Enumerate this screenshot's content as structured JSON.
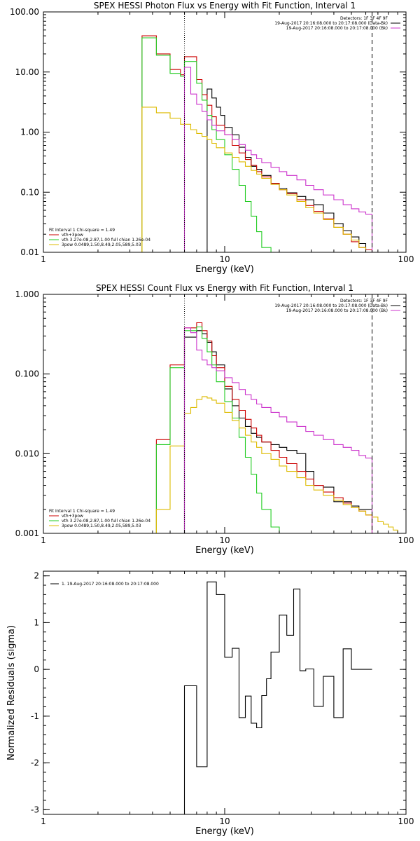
{
  "chart_data": [
    {
      "type": "line",
      "id": "photon",
      "title": "SPEX HESSI Photon Flux vs Energy with Fit Function, Interval 1",
      "xlabel": "Energy (keV)",
      "ylabel": "",
      "xscale": "log",
      "yscale": "log",
      "xlim": [
        1,
        100
      ],
      "ylim": [
        0.01,
        100
      ],
      "xticks": [
        {
          "v": 1,
          "label": "1"
        },
        {
          "v": 10,
          "label": "10"
        },
        {
          "v": 100,
          "label": "100"
        }
      ],
      "yticks": [
        {
          "v": 0.01,
          "label": "0.01"
        },
        {
          "v": 0.1,
          "label": "0.10"
        },
        {
          "v": 1,
          "label": "1.00"
        },
        {
          "v": 10,
          "label": "10.00"
        },
        {
          "v": 100,
          "label": "100.00"
        }
      ],
      "vlines": [
        {
          "x": 6.0,
          "style": "dotted"
        },
        {
          "x": 65,
          "style": "dashed"
        }
      ],
      "top_legend": [
        {
          "text": "Detectors: 1F 3F 4F 9F",
          "color": "#000000",
          "line": false
        },
        {
          "text": "19-Aug-2017 20:16:08.000 to 20:17:08.000 (Data-Bk)",
          "color": "#000000",
          "line": true
        },
        {
          "text": "19-Aug-2017 20:16:08.000 to 20:17:08.000 (Bk)",
          "color": "#cc33cc",
          "line": true
        }
      ],
      "bottom_legend": [
        {
          "text": "Fit Interval 1   Chi-square = 1.49",
          "color": "#000000",
          "line": false
        },
        {
          "text": "vth+3pow",
          "color": "#cc0000",
          "line": true
        },
        {
          "text": "vth 3.27e-08,2.87,1.00  full chian 1.26e-04",
          "color": "#22cc22",
          "line": true
        },
        {
          "text": "3pow 0.0489,1.50,8.49,2.05,589,5.03",
          "color": "#ddbb00",
          "line": true
        }
      ],
      "series": [
        {
          "name": "Data-Bk",
          "color": "#000000",
          "step": true,
          "x": [
            8.0,
            8.5,
            9.0,
            9.5,
            10.0,
            11.0,
            12.0,
            13.0,
            14.0,
            15.0,
            16.0,
            18.0,
            20.0,
            22.0,
            25.0,
            28.0,
            31.0,
            35.0,
            40.0,
            45.0,
            50.0,
            55.0,
            60.0,
            65.0
          ],
          "y": [
            5.2,
            3.7,
            2.6,
            1.9,
            1.2,
            0.9,
            0.56,
            0.38,
            0.27,
            0.24,
            0.19,
            0.14,
            0.115,
            0.098,
            0.085,
            0.075,
            0.062,
            0.045,
            0.03,
            0.023,
            0.018,
            0.014,
            0.011,
            0.0
          ]
        },
        {
          "name": "vth+3pow",
          "color": "#cc0000",
          "step": true,
          "x": [
            3.5,
            4.2,
            5.0,
            5.7,
            6.0,
            6.5,
            7.0,
            7.5,
            8.0,
            8.5,
            9.0,
            10.0,
            11.0,
            12.0,
            13.0,
            14.0,
            15.0,
            16.0,
            18.0,
            20.0,
            22.0,
            25.0,
            28.0,
            31.0,
            35.0,
            40.0,
            45.0,
            50.0,
            55.0,
            60.0,
            65.0
          ],
          "y": [
            40,
            20,
            11,
            9,
            18,
            18,
            7.5,
            4.2,
            2.8,
            1.8,
            1.3,
            0.9,
            0.6,
            0.45,
            0.35,
            0.28,
            0.22,
            0.18,
            0.14,
            0.11,
            0.095,
            0.075,
            0.06,
            0.048,
            0.036,
            0.026,
            0.02,
            0.015,
            0.012,
            0.011,
            0.0
          ]
        },
        {
          "name": "vth",
          "color": "#22cc22",
          "step": true,
          "x": [
            3.5,
            4.2,
            5.0,
            5.7,
            6.0,
            6.5,
            7.0,
            7.5,
            8.0,
            8.5,
            9.0,
            10.0,
            11.0,
            12.0,
            13.0,
            14.0,
            15.0,
            16.0,
            18.0
          ],
          "y": [
            37,
            19,
            9.5,
            8.5,
            15,
            15,
            6.5,
            3.4,
            1.9,
            1.1,
            0.75,
            0.42,
            0.24,
            0.13,
            0.07,
            0.04,
            0.022,
            0.012,
            0.0
          ]
        },
        {
          "name": "3pow",
          "color": "#ddbb00",
          "step": true,
          "x": [
            3.5,
            4.2,
            5.0,
            5.7,
            6.5,
            7.0,
            7.5,
            8.0,
            8.5,
            9.0,
            10.0,
            11.0,
            12.0,
            13.0,
            14.0,
            15.0,
            16.0,
            18.0,
            20.0,
            22.0,
            25.0,
            28.0,
            31.0,
            35.0,
            40.0,
            45.0,
            50.0,
            55.0,
            60.0,
            65.0
          ],
          "y": [
            2.6,
            2.1,
            1.7,
            1.35,
            1.1,
            0.95,
            0.85,
            0.75,
            0.65,
            0.55,
            0.45,
            0.38,
            0.32,
            0.27,
            0.23,
            0.2,
            0.17,
            0.135,
            0.11,
            0.09,
            0.07,
            0.055,
            0.045,
            0.035,
            0.026,
            0.02,
            0.016,
            0.012,
            0.01,
            0.0
          ]
        },
        {
          "name": "Bk",
          "color": "#cc33cc",
          "step": true,
          "x": [
            6.0,
            6.5,
            7.0,
            7.5,
            8.0,
            8.5,
            9.0,
            10.0,
            11.0,
            12.0,
            13.0,
            14.0,
            15.0,
            16.0,
            18.0,
            20.0,
            22.0,
            25.0,
            28.0,
            31.0,
            35.0,
            40.0,
            45.0,
            50.0,
            55.0,
            60.0,
            65.0
          ],
          "y": [
            12,
            4.3,
            2.9,
            2.2,
            1.6,
            1.3,
            1.05,
            0.9,
            0.75,
            0.62,
            0.5,
            0.42,
            0.36,
            0.31,
            0.26,
            0.22,
            0.19,
            0.16,
            0.13,
            0.11,
            0.09,
            0.075,
            0.062,
            0.053,
            0.047,
            0.043,
            0.0
          ]
        }
      ]
    },
    {
      "type": "line",
      "id": "count",
      "title": "SPEX HESSI Count Flux vs Energy with Fit Function, Interval 1",
      "xlabel": "Energy (keV)",
      "ylabel": "",
      "xscale": "log",
      "yscale": "log",
      "xlim": [
        1,
        100
      ],
      "ylim": [
        0.001,
        1
      ],
      "xticks": [
        {
          "v": 1,
          "label": "1"
        },
        {
          "v": 10,
          "label": "10"
        },
        {
          "v": 100,
          "label": "100"
        }
      ],
      "yticks": [
        {
          "v": 0.001,
          "label": "0.001"
        },
        {
          "v": 0.01,
          "label": "0.010"
        },
        {
          "v": 0.1,
          "label": "0.100"
        },
        {
          "v": 1,
          "label": "1.000"
        }
      ],
      "vlines": [
        {
          "x": 6.0,
          "style": "dotted"
        },
        {
          "x": 65,
          "style": "dashed"
        }
      ],
      "top_legend": [
        {
          "text": "Detectors: 1F 3F 4F 9F",
          "color": "#000000",
          "line": false
        },
        {
          "text": "19-Aug-2017 20:16:08.000 to 20:17:08.000 (Data-Bk)",
          "color": "#000000",
          "line": true
        },
        {
          "text": "19-Aug-2017 20:16:08.000 to 20:17:08.000 (Bk)",
          "color": "#cc33cc",
          "line": true
        }
      ],
      "bottom_legend": [
        {
          "text": "Fit Interval 1   Chi-square = 1.49",
          "color": "#000000",
          "line": false
        },
        {
          "text": "vth+3pow",
          "color": "#cc0000",
          "line": true
        },
        {
          "text": "vth 3.27e-08,2.87,1.00  full chian 1.26e-04",
          "color": "#22cc22",
          "line": true
        },
        {
          "text": "3pow 0.0489,1.50,8.49,2.05,589,5.03",
          "color": "#ddbb00",
          "line": true
        }
      ],
      "series": [
        {
          "name": "Data-Bk",
          "color": "#000000",
          "step": true,
          "x": [
            6.0,
            6.5,
            7.0,
            7.5,
            8.0,
            8.5,
            9.0,
            10.0,
            11.0,
            12.0,
            13.0,
            14.0,
            15.0,
            16.0,
            18.0,
            20.0,
            22.0,
            25.0,
            28.0,
            31.0,
            35.0,
            40.0,
            45.0,
            50.0,
            55.0,
            60.0,
            65.0
          ],
          "y": [
            0.29,
            0.29,
            0.35,
            0.32,
            0.25,
            0.19,
            0.13,
            0.065,
            0.04,
            0.028,
            0.022,
            0.018,
            0.016,
            0.014,
            0.013,
            0.012,
            0.011,
            0.01,
            0.006,
            0.004,
            0.0038,
            0.0025,
            0.0025,
            0.0022,
            0.002,
            0.002,
            0.0
          ]
        },
        {
          "name": "vth+3pow",
          "color": "#cc0000",
          "step": true,
          "x": [
            4.2,
            5.0,
            5.7,
            6.0,
            6.5,
            7.0,
            7.5,
            8.0,
            8.5,
            9.0,
            10.0,
            11.0,
            12.0,
            13.0,
            14.0,
            15.0,
            16.0,
            18.0,
            20.0,
            22.0,
            25.0,
            28.0,
            31.0,
            35.0,
            40.0,
            45.0,
            50.0,
            55.0,
            60.0,
            65.0
          ],
          "y": [
            0.015,
            0.13,
            0.13,
            0.38,
            0.38,
            0.44,
            0.35,
            0.26,
            0.17,
            0.12,
            0.07,
            0.048,
            0.035,
            0.027,
            0.021,
            0.017,
            0.014,
            0.011,
            0.009,
            0.0075,
            0.006,
            0.0048,
            0.004,
            0.0033,
            0.0028,
            0.0024,
            0.0021,
            0.0019,
            0.0017,
            0.0
          ]
        },
        {
          "name": "vth",
          "color": "#22cc22",
          "step": true,
          "x": [
            4.2,
            5.0,
            5.7,
            6.0,
            6.5,
            7.0,
            7.5,
            8.0,
            8.5,
            9.0,
            10.0,
            11.0,
            12.0,
            13.0,
            14.0,
            15.0,
            16.0,
            18.0,
            20.0
          ],
          "y": [
            0.013,
            0.12,
            0.12,
            0.35,
            0.35,
            0.39,
            0.28,
            0.19,
            0.13,
            0.08,
            0.045,
            0.028,
            0.016,
            0.009,
            0.0055,
            0.0032,
            0.002,
            0.0012,
            0.0
          ]
        },
        {
          "name": "3pow",
          "color": "#ddbb00",
          "step": true,
          "x": [
            4.2,
            5.0,
            5.7,
            6.0,
            6.5,
            7.0,
            7.5,
            8.0,
            8.5,
            9.0,
            10.0,
            11.0,
            12.0,
            13.0,
            14.0,
            15.0,
            16.0,
            18.0,
            20.0,
            22.0,
            25.0,
            28.0,
            31.0,
            35.0,
            40.0,
            45.0,
            50.0,
            55.0,
            60.0,
            65.0,
            70.0,
            75.0,
            80.0,
            85.0,
            90.0,
            100.0
          ],
          "y": [
            0.002,
            0.0125,
            0.0125,
            0.032,
            0.038,
            0.048,
            0.052,
            0.05,
            0.047,
            0.043,
            0.033,
            0.026,
            0.021,
            0.017,
            0.014,
            0.012,
            0.01,
            0.0085,
            0.007,
            0.006,
            0.005,
            0.004,
            0.0035,
            0.003,
            0.0026,
            0.0023,
            0.0021,
            0.0019,
            0.0017,
            0.0016,
            0.0014,
            0.0013,
            0.0012,
            0.0011,
            0.001,
            0.0
          ]
        },
        {
          "name": "Bk",
          "color": "#cc33cc",
          "step": true,
          "x": [
            6.0,
            6.5,
            7.0,
            7.5,
            8.0,
            8.5,
            9.0,
            10.0,
            11.0,
            12.0,
            13.0,
            14.0,
            15.0,
            16.0,
            18.0,
            20.0,
            22.0,
            25.0,
            28.0,
            31.0,
            35.0,
            40.0,
            45.0,
            50.0,
            55.0,
            60.0,
            65.0
          ],
          "y": [
            0.38,
            0.33,
            0.2,
            0.15,
            0.13,
            0.12,
            0.11,
            0.09,
            0.078,
            0.064,
            0.055,
            0.048,
            0.042,
            0.038,
            0.033,
            0.029,
            0.025,
            0.022,
            0.019,
            0.017,
            0.015,
            0.013,
            0.012,
            0.011,
            0.0095,
            0.0088,
            0.0
          ]
        }
      ]
    },
    {
      "type": "line",
      "id": "resid",
      "title": "",
      "xlabel": "Energy (keV)",
      "ylabel": "Normalized Residuals (sigma)",
      "xscale": "log",
      "yscale": "linear",
      "xlim": [
        1,
        100
      ],
      "ylim": [
        -3.1,
        2.1
      ],
      "xticks": [
        {
          "v": 1,
          "label": "1"
        },
        {
          "v": 10,
          "label": "10"
        },
        {
          "v": 100,
          "label": "100"
        }
      ],
      "yticks": [
        {
          "v": -3,
          "label": "-3"
        },
        {
          "v": -2,
          "label": "-2"
        },
        {
          "v": -1,
          "label": "-1"
        },
        {
          "v": 0,
          "label": "0"
        },
        {
          "v": 1,
          "label": "1"
        },
        {
          "v": 2,
          "label": "2"
        }
      ],
      "vlines": [],
      "top_legend": [],
      "bottom_legend": [],
      "residual_legend": {
        "text": "1. 19-Aug-2017 20:16:08.000 to 20:17:08.000",
        "color": "#000000"
      },
      "series": [
        {
          "name": "residuals",
          "color": "#000000",
          "step": true,
          "x": [
            6.0,
            7.0,
            8.0,
            9.0,
            10.0,
            11.0,
            12.0,
            13.0,
            14.0,
            15.0,
            16.0,
            17.0,
            18.0,
            20.0,
            22.0,
            24.0,
            26.0,
            28.0,
            31.0,
            35.0,
            40.0,
            45.0,
            50.0,
            55.0,
            60.0,
            65.0
          ],
          "y": [
            -0.35,
            -2.08,
            1.87,
            1.6,
            0.26,
            0.45,
            -1.03,
            -0.57,
            -1.15,
            -1.25,
            -0.56,
            -0.2,
            0.37,
            1.16,
            0.73,
            1.72,
            -0.03,
            0.01,
            -0.79,
            -0.15,
            -1.03,
            0.44,
            -0.0,
            -0.0,
            -0.0,
            -0.0
          ]
        }
      ]
    }
  ]
}
